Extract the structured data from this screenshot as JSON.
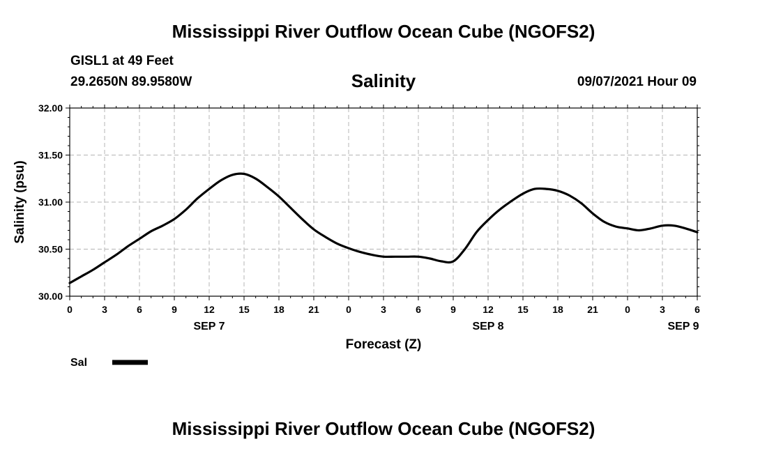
{
  "header": {
    "title": "Mississippi River Outflow Ocean Cube (NGOFS2)",
    "station": "GISL1 at 49 Feet",
    "coords": "29.2650N  89.9580W",
    "variable": "Salinity",
    "datetime": "09/07/2021 Hour 09"
  },
  "footer": {
    "title": "Mississippi River Outflow Ocean Cube (NGOFS2)"
  },
  "chart_data": {
    "type": "line",
    "title": "Salinity",
    "xlabel": "Forecast (Z)",
    "ylabel": "Salinity (psu)",
    "xlim": [
      0,
      54
    ],
    "ylim": [
      30.0,
      32.0
    ],
    "grid": true,
    "legend_position": "bottom-left",
    "yticks": [
      "30.00",
      "30.50",
      "31.00",
      "31.50",
      "32.00"
    ],
    "xticks": [
      {
        "x": 0,
        "label": "0"
      },
      {
        "x": 3,
        "label": "3"
      },
      {
        "x": 6,
        "label": "6"
      },
      {
        "x": 9,
        "label": "9"
      },
      {
        "x": 12,
        "label": "12"
      },
      {
        "x": 15,
        "label": "15"
      },
      {
        "x": 18,
        "label": "18"
      },
      {
        "x": 21,
        "label": "21"
      },
      {
        "x": 24,
        "label": "0"
      },
      {
        "x": 27,
        "label": "3"
      },
      {
        "x": 30,
        "label": "6"
      },
      {
        "x": 33,
        "label": "9"
      },
      {
        "x": 36,
        "label": "12"
      },
      {
        "x": 39,
        "label": "15"
      },
      {
        "x": 42,
        "label": "18"
      },
      {
        "x": 45,
        "label": "21"
      },
      {
        "x": 48,
        "label": "0"
      },
      {
        "x": 51,
        "label": "3"
      },
      {
        "x": 54,
        "label": "6"
      }
    ],
    "day_labels": [
      {
        "x": 12,
        "label": "SEP 7"
      },
      {
        "x": 36,
        "label": "SEP 8"
      },
      {
        "x": 52.8,
        "label": "SEP 9"
      }
    ],
    "series": [
      {
        "name": "Sal",
        "color": "#000000",
        "x": [
          0,
          1,
          2,
          3,
          4,
          5,
          6,
          7,
          8,
          9,
          10,
          11,
          12,
          13,
          14,
          15,
          16,
          17,
          18,
          19,
          20,
          21,
          22,
          23,
          24,
          25,
          26,
          27,
          28,
          29,
          30,
          31,
          32,
          33,
          34,
          35,
          36,
          37,
          38,
          39,
          40,
          41,
          42,
          43,
          44,
          45,
          46,
          47,
          48,
          49,
          50,
          51,
          52,
          53,
          54
        ],
        "values": [
          30.14,
          30.21,
          30.28,
          30.36,
          30.44,
          30.53,
          30.61,
          30.69,
          30.75,
          30.82,
          30.92,
          31.04,
          31.14,
          31.23,
          31.29,
          31.3,
          31.25,
          31.16,
          31.06,
          30.94,
          30.82,
          30.71,
          30.63,
          30.56,
          30.51,
          30.47,
          30.44,
          30.42,
          30.42,
          30.42,
          30.42,
          30.4,
          30.37,
          30.37,
          30.5,
          30.68,
          30.81,
          30.92,
          31.01,
          31.09,
          31.14,
          31.14,
          31.12,
          31.07,
          30.99,
          30.88,
          30.79,
          30.74,
          30.72,
          30.7,
          30.72,
          30.75,
          30.75,
          30.72,
          30.68
        ]
      }
    ]
  }
}
